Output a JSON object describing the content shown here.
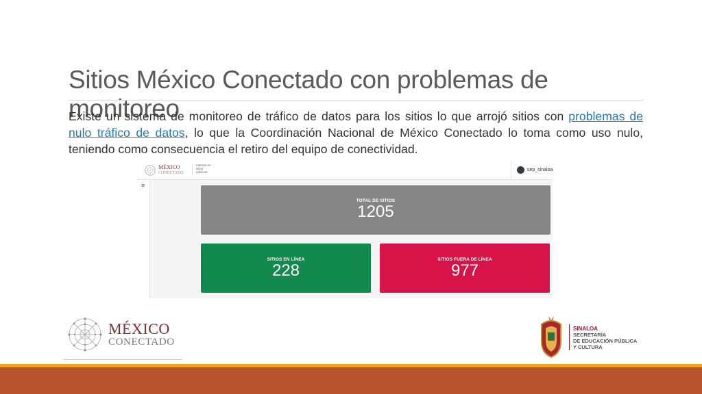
{
  "slide": {
    "title": "Sitios México Conectado con problemas de monitoreo",
    "body_before_link": "Existe un sistema de monitoreo de tráfico de datos para los sitios lo que arrojó sitios con ",
    "body_link": "problemas de nulo tráfico de datos",
    "body_after_link": ", lo que la Coordinación Nacional de México Conectado lo toma como uso nulo, teniendo como consecuencia el retiro del equipo de conectividad."
  },
  "dashboard": {
    "logo_title": "MÉXICO",
    "logo_subtitle": "CONECTADO",
    "app_label": "Internet en sitios públicos",
    "menu_icon": "menu-icon",
    "user": "sep_sinaloa",
    "cards": {
      "total": {
        "label": "TOTAL DE SITIOS",
        "value": "1205",
        "color": "#858585"
      },
      "online": {
        "label": "SITIOS EN LÍNEA",
        "value": "228",
        "color": "#128a4e"
      },
      "offline": {
        "label": "SITIOS FUERA DE LÍNEA",
        "value": "977",
        "color": "#d71348"
      }
    }
  },
  "footer": {
    "mexico_logo_title": "MÉXICO",
    "mexico_logo_subtitle": "CONECTADO",
    "sinaloa_title": "SINALOA",
    "sinaloa_lines": [
      "SECRETARÍA",
      "DE EDUCACIÓN PÚBLICA",
      "Y CULTURA"
    ],
    "bar_colors": [
      "#f0a11f",
      "#b8542e"
    ]
  }
}
